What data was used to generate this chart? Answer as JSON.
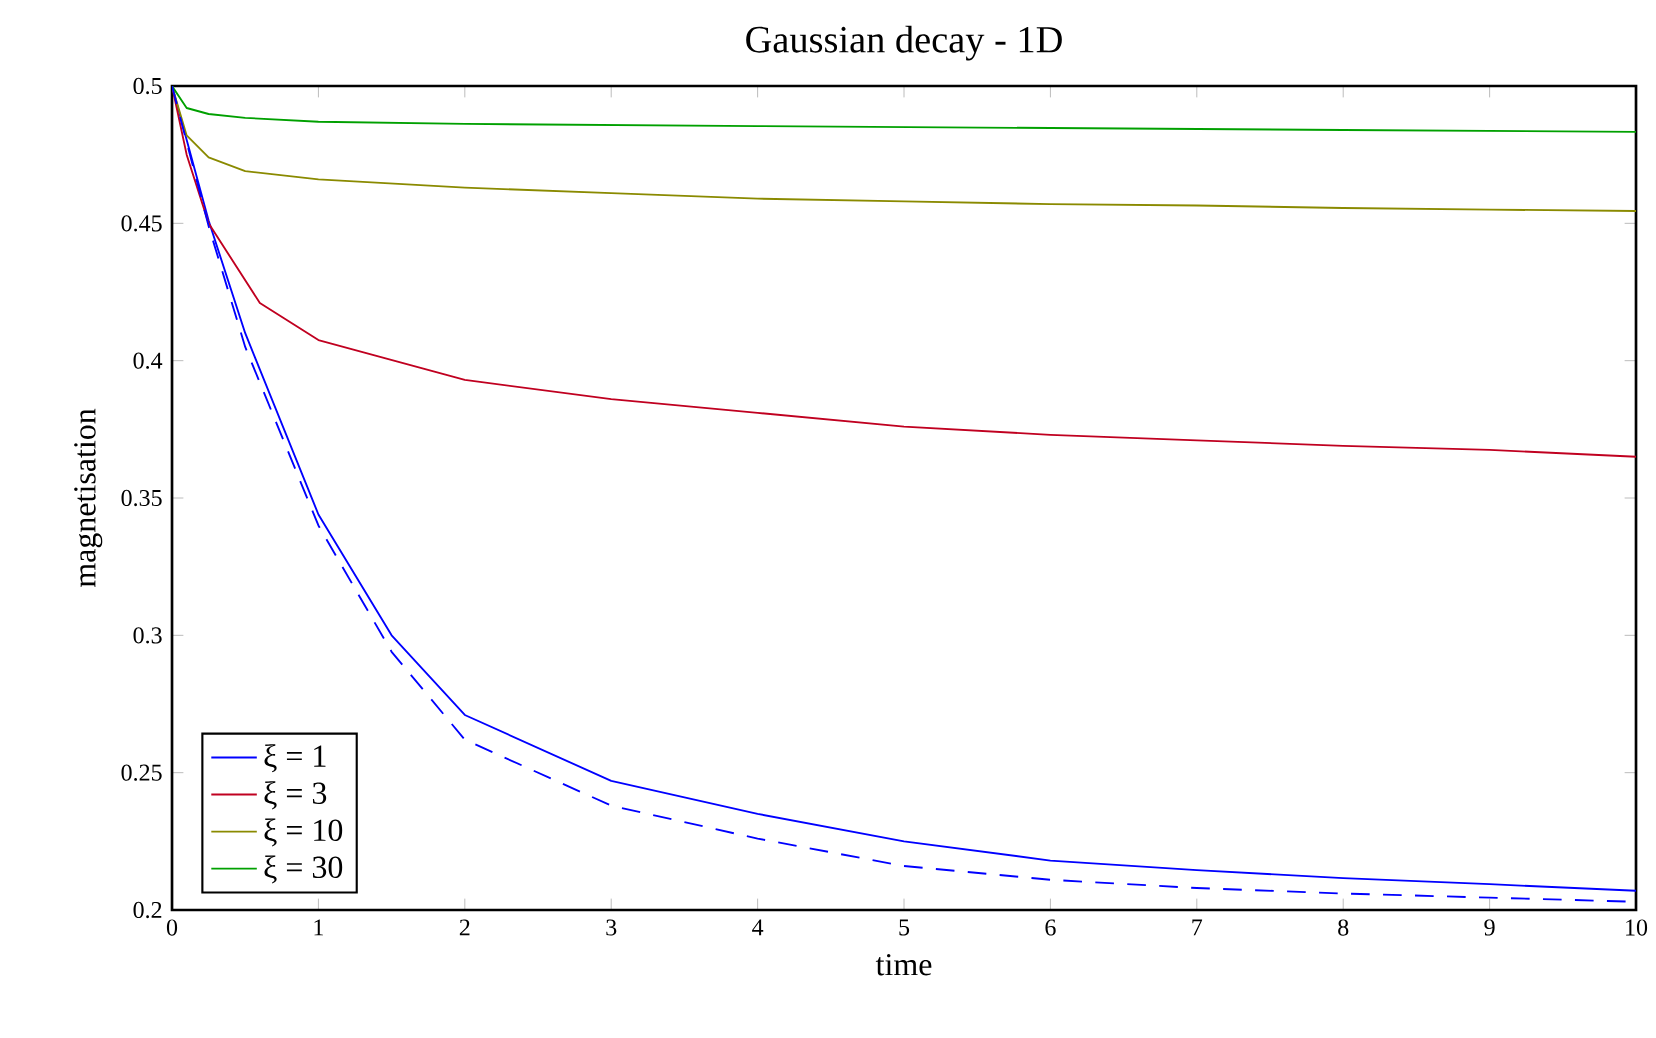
{
  "chart_data": {
    "type": "line",
    "title": "Gaussian decay - 1D",
    "xlabel": "time",
    "ylabel": "magnetisation",
    "xlim": [
      0,
      10
    ],
    "ylim": [
      0.2,
      0.5
    ],
    "xticks": [
      0,
      1,
      2,
      3,
      4,
      5,
      6,
      7,
      8,
      9,
      10
    ],
    "yticks": [
      0.2,
      0.25,
      0.3,
      0.35,
      0.4,
      0.45,
      0.5
    ],
    "legend": "bottom left",
    "grid": false,
    "line_style": "solid",
    "series": [
      {
        "name": "ξ = 1",
        "color": "#0000ff",
        "x": [
          0,
          0.25,
          0.5,
          1,
          1.5,
          2,
          3,
          4,
          5,
          6,
          7,
          8,
          9,
          10
        ],
        "values": [
          0.5,
          0.451,
          0.41,
          0.344,
          0.3,
          0.271,
          0.247,
          0.235,
          0.225,
          0.218,
          0.2145,
          0.2116,
          0.2094,
          0.207
        ]
      },
      {
        "name": "ξ = 3",
        "color": "#c00020",
        "x": [
          0,
          0.1,
          0.25,
          0.6,
          1,
          2,
          3,
          4,
          5,
          6,
          7,
          8,
          9,
          10
        ],
        "values": [
          0.5,
          0.475,
          0.45,
          0.421,
          0.4075,
          0.393,
          0.386,
          0.381,
          0.376,
          0.373,
          0.371,
          0.369,
          0.3675,
          0.365
        ]
      },
      {
        "name": "ξ = 10",
        "color": "#8a8a00",
        "x": [
          0,
          0.1,
          0.25,
          0.5,
          1,
          2,
          3,
          4,
          5,
          6,
          7,
          8,
          9,
          10
        ],
        "values": [
          0.5,
          0.482,
          0.474,
          0.469,
          0.466,
          0.463,
          0.461,
          0.459,
          0.458,
          0.457,
          0.4565,
          0.4556,
          0.455,
          0.4545
        ]
      },
      {
        "name": "ξ = 30",
        "color": "#00a000",
        "x": [
          0,
          0.1,
          0.25,
          0.5,
          1,
          2,
          4,
          6,
          8,
          10
        ],
        "values": [
          0.5,
          0.492,
          0.4898,
          0.4884,
          0.487,
          0.4862,
          0.4854,
          0.4847,
          0.484,
          0.4833
        ]
      },
      {
        "color": "#0000ff",
        "line_style": "dashed",
        "x": [
          0,
          0.25,
          0.5,
          1,
          1.5,
          2,
          3,
          4,
          5,
          6,
          7,
          8,
          9,
          10
        ],
        "values": [
          0.5,
          0.449,
          0.405,
          0.34,
          0.294,
          0.262,
          0.238,
          0.226,
          0.216,
          0.211,
          0.208,
          0.206,
          0.2045,
          0.203
        ]
      }
    ]
  }
}
